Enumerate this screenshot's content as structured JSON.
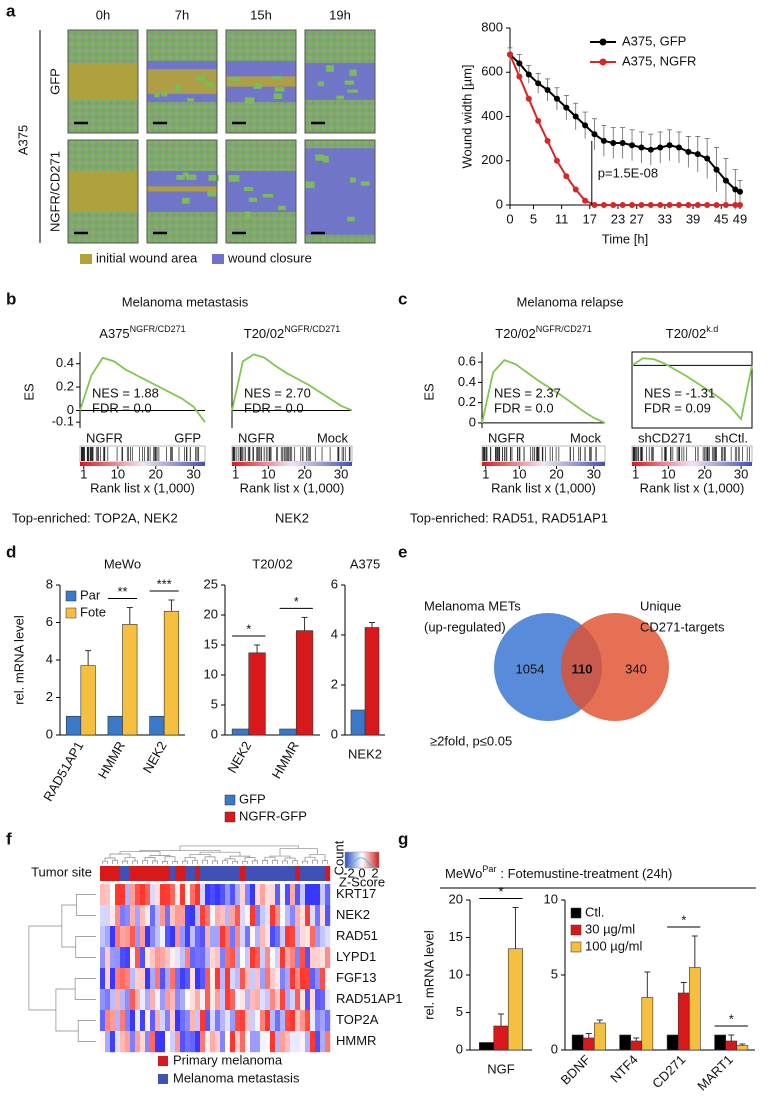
{
  "panel_a": {
    "letter": "a",
    "time_points": [
      "0h",
      "7h",
      "15h",
      "19h"
    ],
    "conditions": [
      "GFP",
      "NGFR/CD271"
    ],
    "cell_line": "A375",
    "legend": [
      "initial wound area",
      "wound closure"
    ],
    "chart": {
      "type": "line",
      "y_label": "Wound width [µm]",
      "x_label": "Time [h]",
      "x": [
        0,
        2,
        4,
        6,
        8,
        10,
        12,
        14,
        16,
        18,
        20,
        22,
        24,
        26,
        28,
        30,
        32,
        34,
        36,
        38,
        40,
        42,
        44,
        46,
        48,
        49
      ],
      "xlim": [
        0,
        49
      ],
      "xticks": [
        0,
        5,
        11,
        17,
        23,
        27,
        33,
        39,
        45,
        49
      ],
      "ylim": [
        0,
        800
      ],
      "yticks": [
        0,
        200,
        400,
        600,
        800
      ],
      "legend_position": "upper right",
      "annotation": "p=1.5E-08",
      "series": [
        {
          "name": "A375, GFP",
          "color": "#000000",
          "values": [
            680,
            640,
            590,
            550,
            520,
            480,
            440,
            400,
            360,
            320,
            290,
            280,
            280,
            270,
            260,
            250,
            260,
            270,
            260,
            240,
            230,
            210,
            160,
            110,
            70,
            60
          ],
          "errors": [
            30,
            40,
            40,
            45,
            50,
            50,
            55,
            60,
            60,
            70,
            70,
            70,
            70,
            70,
            70,
            70,
            70,
            70,
            70,
            70,
            80,
            90,
            100,
            100,
            90,
            50
          ]
        },
        {
          "name": "A375, NGFR",
          "color": "#d62728",
          "values": [
            680,
            580,
            480,
            380,
            290,
            200,
            130,
            70,
            20,
            0,
            0,
            0,
            0,
            0,
            0,
            0,
            0,
            0,
            0,
            0,
            0,
            0,
            0,
            0,
            0,
            0
          ]
        }
      ]
    }
  },
  "panel_b": {
    "letter": "b",
    "title": "Melanoma metastasis",
    "y_label": "ES",
    "rank_label": "Rank list x (1,000)",
    "footer": [
      "Top-enriched: TOP2A, NEK2",
      "NEK2"
    ],
    "plots": [
      {
        "name": {
          "base": "A375",
          "sup": "NGFR/CD271"
        },
        "ylim": [
          -0.15,
          0.5
        ],
        "yticks": [
          0.4,
          0.2,
          0,
          -0.1
        ],
        "x": [
          0,
          3,
          6,
          9,
          12,
          15,
          18,
          21,
          24,
          27,
          30,
          33
        ],
        "rank_xlim": [
          0,
          33
        ],
        "values": [
          0,
          0.3,
          0.45,
          0.42,
          0.35,
          0.3,
          0.25,
          0.2,
          0.15,
          0.1,
          0.03,
          -0.1
        ],
        "nes": "NES = 1.88",
        "fdr": "FDR = 0.0",
        "labels": [
          "NGFR",
          "GFP"
        ],
        "rank_ticks": [
          1,
          10,
          20,
          30
        ]
      },
      {
        "name": {
          "base": "T20/02",
          "sup": "NGFR/CD271"
        },
        "ylim": [
          -0.15,
          0.5
        ],
        "x": [
          0,
          3,
          6,
          9,
          12,
          15,
          18,
          21,
          24,
          27,
          30,
          33
        ],
        "rank_xlim": [
          0,
          33
        ],
        "values": [
          0,
          0.42,
          0.48,
          0.45,
          0.38,
          0.32,
          0.27,
          0.22,
          0.16,
          0.1,
          0.04,
          0
        ],
        "nes": "NES = 2.70",
        "fdr": "FDR = 0.0",
        "labels": [
          "NGFR",
          "Mock"
        ],
        "rank_ticks": [
          1,
          10,
          20,
          30
        ]
      }
    ]
  },
  "panel_c": {
    "letter": "c",
    "title": "Melanoma relapse",
    "y_label": "ES",
    "rank_label": "Rank list x (1,000)",
    "footer": [
      "Top-enriched: RAD51, RAD51AP1"
    ],
    "plots": [
      {
        "name": {
          "base": "T20/02",
          "sup": "NGFR/CD271"
        },
        "ylim": [
          -0.05,
          0.7
        ],
        "yticks": [
          0.6,
          0.4,
          0.2,
          0
        ],
        "x": [
          0,
          3,
          6,
          9,
          12,
          15,
          18,
          21,
          24,
          27,
          30,
          33
        ],
        "rank_xlim": [
          0,
          33
        ],
        "values": [
          0,
          0.5,
          0.62,
          0.58,
          0.5,
          0.42,
          0.35,
          0.28,
          0.2,
          0.12,
          0.05,
          0
        ],
        "nes": "NES = 2.37",
        "fdr": "FDR = 0.0",
        "labels": [
          "NGFR",
          "Mock"
        ],
        "rank_ticks": [
          1,
          10,
          20,
          30
        ]
      },
      {
        "name": {
          "base": "T20/02",
          "sup": "k.d"
        },
        "ylim": [
          -0.7,
          0.15
        ],
        "x": [
          0,
          3,
          6,
          9,
          12,
          15,
          18,
          21,
          24,
          27,
          30,
          33
        ],
        "rank_xlim": [
          0,
          33
        ],
        "values": [
          0,
          0.08,
          0.07,
          0.02,
          -0.05,
          -0.12,
          -0.2,
          -0.28,
          -0.36,
          -0.46,
          -0.6,
          0
        ],
        "nes": "NES = -1.31",
        "fdr": "FDR = 0.09",
        "labels": [
          "shCD271",
          "shCtl."
        ],
        "rank_ticks": [
          1,
          10,
          20,
          30
        ]
      }
    ]
  },
  "panel_d": {
    "letter": "d",
    "y_label": "rel. mRNA level",
    "charts": [
      {
        "type": "bar",
        "title": "MeWo",
        "categories": [
          "RAD51AP1",
          "HMMR",
          "NEK2"
        ],
        "ylim": [
          0,
          8
        ],
        "yticks": [
          0,
          2,
          4,
          6,
          8
        ],
        "significance": [
          null,
          "**",
          "***"
        ],
        "series": [
          {
            "name": "Par",
            "color": "#3a78c9",
            "values": [
              1,
              1,
              1
            ]
          },
          {
            "name": "Fote",
            "color": "#f5c040",
            "values": [
              3.7,
              5.9,
              6.6
            ],
            "errors": [
              0.8,
              0.9,
              0.6
            ]
          }
        ]
      },
      {
        "type": "bar",
        "title": "T20/02",
        "categories": [
          "NEK2",
          "HMMR"
        ],
        "ylim": [
          0,
          25
        ],
        "yticks": [
          0,
          5,
          10,
          15,
          20,
          25
        ],
        "significance": [
          "*",
          "*"
        ],
        "series": [
          {
            "name": "GFP",
            "color": "#3a78c9",
            "values": [
              1,
              1
            ]
          },
          {
            "name": "NGFR-GFP",
            "color": "#d7191c",
            "values": [
              13.7,
              17.4
            ],
            "errors": [
              1.3,
              2.2
            ]
          }
        ]
      },
      {
        "type": "bar",
        "title": "A375",
        "categories": [
          "NEK2"
        ],
        "ylim": [
          0,
          6
        ],
        "yticks": [
          0,
          2,
          4,
          6
        ],
        "series": [
          {
            "name": "GFP",
            "color": "#3a78c9",
            "values": [
              1
            ]
          },
          {
            "name": "NGFR-GFP",
            "color": "#d7191c",
            "values": [
              4.3
            ],
            "errors": [
              0.2
            ]
          }
        ]
      }
    ]
  },
  "panel_e": {
    "letter": "e",
    "left_label": [
      "Melanoma METs",
      "(up-regulated)"
    ],
    "right_label": [
      "Unique",
      "CD271-targets"
    ],
    "counts": [
      1054,
      110,
      340
    ],
    "note": "≥2fold, p≤0.05"
  },
  "panel_f": {
    "letter": "f",
    "track_label": "Tumor site",
    "genes": [
      "KRT17",
      "NEK2",
      "RAD51",
      "LYPD1",
      "FGF13",
      "RAD51AP1",
      "TOP2A",
      "HMMR"
    ],
    "key": {
      "title": "Count",
      "ticks": [
        -2,
        0,
        2
      ],
      "label": "Z-Score"
    },
    "legend": [
      {
        "name": "Primary melanoma",
        "color": "#d7191c"
      },
      {
        "name": "Melanoma metastasis",
        "color": "#3f51b5"
      }
    ]
  },
  "panel_g": {
    "letter": "g",
    "title": {
      "base": "MeWo",
      "sup": "Par",
      "rest": ": Fotemustine-treatment (24h)"
    },
    "y_label": "rel. mRNA level",
    "charts": [
      {
        "type": "bar",
        "categories": [
          "NGF"
        ],
        "ylim": [
          0,
          20
        ],
        "yticks": [
          0,
          5,
          10,
          15,
          20
        ],
        "significance": [
          "*"
        ],
        "series": [
          {
            "name": "Ctl.",
            "color": "#000000",
            "values": [
              1
            ]
          },
          {
            "name": "30 µg/ml",
            "color": "#d7191c",
            "values": [
              3.2
            ],
            "errors": [
              1.6
            ]
          },
          {
            "name": "100 µg/ml",
            "color": "#f5c040",
            "values": [
              13.5
            ],
            "errors": [
              5.5
            ]
          }
        ]
      },
      {
        "type": "bar",
        "categories": [
          "BDNF",
          "NTF4",
          "CD271",
          "MART1"
        ],
        "ylim": [
          0,
          10
        ],
        "yticks": [
          0,
          5,
          10
        ],
        "significance": [
          null,
          null,
          "*",
          "*"
        ],
        "series": [
          {
            "name": "Ctl.",
            "color": "#000000",
            "values": [
              1,
              1,
              1,
              1
            ]
          },
          {
            "name": "30 µg/ml",
            "color": "#d7191c",
            "values": [
              0.8,
              0.6,
              3.8,
              0.6
            ],
            "errors": [
              0.3,
              0.2,
              0.7,
              0.4
            ]
          },
          {
            "name": "100 µg/ml",
            "color": "#f5c040",
            "values": [
              1.8,
              3.5,
              5.5,
              0.3
            ],
            "errors": [
              0.2,
              1.7,
              2.1,
              0.1
            ]
          }
        ]
      }
    ]
  }
}
